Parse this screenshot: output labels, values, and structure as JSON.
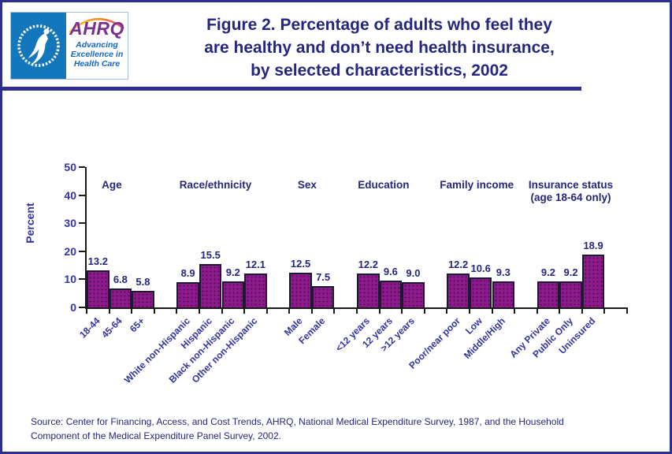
{
  "header": {
    "ahrq_logo": {
      "acronym": "AHRQ",
      "tagline_lines": [
        "Advancing",
        "Excellence in",
        "Health Care"
      ]
    },
    "title_lines": [
      "Figure 2. Percentage of adults who feel they",
      "are healthy and don’t need health insurance,",
      "by selected characteristics, 2002"
    ]
  },
  "source_lines": [
    "Source: Center for Financing, Access, and Cost Trends, AHRQ, National Medical Expenditure Survey, 1987, and the Household",
    "Component of the Medical Expenditure Panel Survey, 2002."
  ],
  "colors": {
    "border_navy": "#2E2E8F",
    "title_navy": "#26267E",
    "axis_blue": "#3333A2",
    "bar_fill": "#8C1A8A",
    "bar_dot": "#4D0D52",
    "bar_border": "#1A1A33",
    "axis_line": "#1A1A1A",
    "hhs_blue": "#1577BB",
    "ahrq_purple": "#7B2F92",
    "ahrq_tagline_blue": "#1566C0"
  },
  "chart_data": {
    "type": "bar",
    "title": "Percentage of adults who feel they are healthy and don’t need health insurance, by selected characteristics, 2002",
    "xlabel": "",
    "ylabel": "Percent",
    "ylim": [
      0,
      50
    ],
    "yticks": [
      0,
      10,
      20,
      30,
      40,
      50
    ],
    "grid": false,
    "legend": false,
    "bar_color": "#8C1A8A",
    "groups": [
      {
        "label": "Age",
        "categories": [
          "18-44",
          "45-64",
          "65+"
        ],
        "values": [
          13.2,
          6.8,
          5.8
        ]
      },
      {
        "label": "Race/ethnicity",
        "categories": [
          "White non-Hispanic",
          "Hispanic",
          "Black non-Hispanic",
          "Other non-Hispanic"
        ],
        "values": [
          8.9,
          15.5,
          9.2,
          12.1
        ]
      },
      {
        "label": "Sex",
        "categories": [
          "Male",
          "Female"
        ],
        "values": [
          12.5,
          7.5
        ]
      },
      {
        "label": "Education",
        "categories": [
          "<12 years",
          "12 years",
          ">12 years"
        ],
        "values": [
          12.2,
          9.6,
          9.0
        ]
      },
      {
        "label": "Family income",
        "categories": [
          "Poor/near poor",
          "Low",
          "Middle/High"
        ],
        "values": [
          12.2,
          10.6,
          9.3
        ]
      },
      {
        "label": "Insurance status",
        "sublabel": "(age 18-64 only)",
        "categories": [
          "Any Private",
          "Public Only",
          "Uninsured"
        ],
        "values": [
          9.2,
          9.2,
          18.9
        ]
      }
    ]
  }
}
